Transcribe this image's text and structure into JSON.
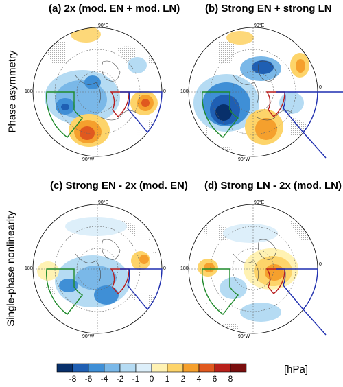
{
  "panels": [
    {
      "title": "(a) 2x (mod. EN + mod. LN)"
    },
    {
      "title": "(b) Strong EN + strong LN"
    },
    {
      "title": "(c) Strong EN - 2x (mod. EN)"
    },
    {
      "title": "(d) Strong LN - 2x (mod. LN)"
    }
  ],
  "row_labels": [
    "Phase asymmetry",
    "Single-phase nonlinearity"
  ],
  "coords": {
    "top": "90°E",
    "bottom": "90°W",
    "left": "180",
    "right": "0"
  },
  "colorbar": {
    "ticks": [
      "-8",
      "-6",
      "-4",
      "-2",
      "-1",
      "0",
      "1",
      "2",
      "4",
      "6",
      "8"
    ],
    "colors": [
      "#08306b",
      "#1f5fb3",
      "#3f8fd6",
      "#7ab8e8",
      "#b5dbf3",
      "#ddeffa",
      "#fff2b3",
      "#fdd46a",
      "#f5a02d",
      "#e0591f",
      "#b8201a",
      "#7a0e0e"
    ],
    "units": "[hPa]"
  },
  "box_colors": {
    "green": "#1f8a2b",
    "red": "#b81c1c",
    "blue": "#1f2fb0"
  }
}
